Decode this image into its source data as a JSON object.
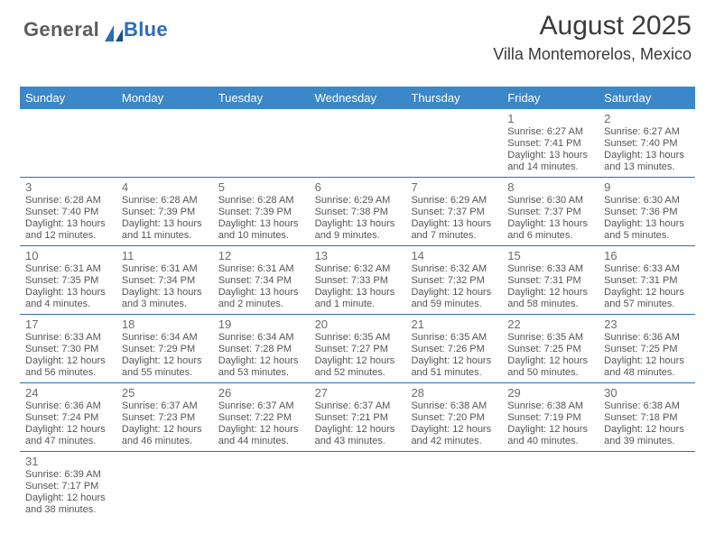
{
  "brand": {
    "general": "General",
    "blue": "Blue"
  },
  "title": {
    "month": "August 2025",
    "location": "Villa Montemorelos, Mexico"
  },
  "colors": {
    "header_bg": "#3b87c8",
    "header_fg": "#ffffff",
    "divider": "#2f6db3",
    "text": "#555555",
    "day_num": "#6b6b6b"
  },
  "daynames": [
    "Sunday",
    "Monday",
    "Tuesday",
    "Wednesday",
    "Thursday",
    "Friday",
    "Saturday"
  ],
  "days": {
    "1": {
      "sunrise": "6:27 AM",
      "sunset": "7:41 PM",
      "daylight": "13 hours and 14 minutes."
    },
    "2": {
      "sunrise": "6:27 AM",
      "sunset": "7:40 PM",
      "daylight": "13 hours and 13 minutes."
    },
    "3": {
      "sunrise": "6:28 AM",
      "sunset": "7:40 PM",
      "daylight": "13 hours and 12 minutes."
    },
    "4": {
      "sunrise": "6:28 AM",
      "sunset": "7:39 PM",
      "daylight": "13 hours and 11 minutes."
    },
    "5": {
      "sunrise": "6:28 AM",
      "sunset": "7:39 PM",
      "daylight": "13 hours and 10 minutes."
    },
    "6": {
      "sunrise": "6:29 AM",
      "sunset": "7:38 PM",
      "daylight": "13 hours and 9 minutes."
    },
    "7": {
      "sunrise": "6:29 AM",
      "sunset": "7:37 PM",
      "daylight": "13 hours and 7 minutes."
    },
    "8": {
      "sunrise": "6:30 AM",
      "sunset": "7:37 PM",
      "daylight": "13 hours and 6 minutes."
    },
    "9": {
      "sunrise": "6:30 AM",
      "sunset": "7:36 PM",
      "daylight": "13 hours and 5 minutes."
    },
    "10": {
      "sunrise": "6:31 AM",
      "sunset": "7:35 PM",
      "daylight": "13 hours and 4 minutes."
    },
    "11": {
      "sunrise": "6:31 AM",
      "sunset": "7:34 PM",
      "daylight": "13 hours and 3 minutes."
    },
    "12": {
      "sunrise": "6:31 AM",
      "sunset": "7:34 PM",
      "daylight": "13 hours and 2 minutes."
    },
    "13": {
      "sunrise": "6:32 AM",
      "sunset": "7:33 PM",
      "daylight": "13 hours and 1 minute."
    },
    "14": {
      "sunrise": "6:32 AM",
      "sunset": "7:32 PM",
      "daylight": "12 hours and 59 minutes."
    },
    "15": {
      "sunrise": "6:33 AM",
      "sunset": "7:31 PM",
      "daylight": "12 hours and 58 minutes."
    },
    "16": {
      "sunrise": "6:33 AM",
      "sunset": "7:31 PM",
      "daylight": "12 hours and 57 minutes."
    },
    "17": {
      "sunrise": "6:33 AM",
      "sunset": "7:30 PM",
      "daylight": "12 hours and 56 minutes."
    },
    "18": {
      "sunrise": "6:34 AM",
      "sunset": "7:29 PM",
      "daylight": "12 hours and 55 minutes."
    },
    "19": {
      "sunrise": "6:34 AM",
      "sunset": "7:28 PM",
      "daylight": "12 hours and 53 minutes."
    },
    "20": {
      "sunrise": "6:35 AM",
      "sunset": "7:27 PM",
      "daylight": "12 hours and 52 minutes."
    },
    "21": {
      "sunrise": "6:35 AM",
      "sunset": "7:26 PM",
      "daylight": "12 hours and 51 minutes."
    },
    "22": {
      "sunrise": "6:35 AM",
      "sunset": "7:25 PM",
      "daylight": "12 hours and 50 minutes."
    },
    "23": {
      "sunrise": "6:36 AM",
      "sunset": "7:25 PM",
      "daylight": "12 hours and 48 minutes."
    },
    "24": {
      "sunrise": "6:36 AM",
      "sunset": "7:24 PM",
      "daylight": "12 hours and 47 minutes."
    },
    "25": {
      "sunrise": "6:37 AM",
      "sunset": "7:23 PM",
      "daylight": "12 hours and 46 minutes."
    },
    "26": {
      "sunrise": "6:37 AM",
      "sunset": "7:22 PM",
      "daylight": "12 hours and 44 minutes."
    },
    "27": {
      "sunrise": "6:37 AM",
      "sunset": "7:21 PM",
      "daylight": "12 hours and 43 minutes."
    },
    "28": {
      "sunrise": "6:38 AM",
      "sunset": "7:20 PM",
      "daylight": "12 hours and 42 minutes."
    },
    "29": {
      "sunrise": "6:38 AM",
      "sunset": "7:19 PM",
      "daylight": "12 hours and 40 minutes."
    },
    "30": {
      "sunrise": "6:38 AM",
      "sunset": "7:18 PM",
      "daylight": "12 hours and 39 minutes."
    },
    "31": {
      "sunrise": "6:39 AM",
      "sunset": "7:17 PM",
      "daylight": "12 hours and 38 minutes."
    }
  },
  "grid": [
    [
      null,
      null,
      null,
      null,
      null,
      "1",
      "2"
    ],
    [
      "3",
      "4",
      "5",
      "6",
      "7",
      "8",
      "9"
    ],
    [
      "10",
      "11",
      "12",
      "13",
      "14",
      "15",
      "16"
    ],
    [
      "17",
      "18",
      "19",
      "20",
      "21",
      "22",
      "23"
    ],
    [
      "24",
      "25",
      "26",
      "27",
      "28",
      "29",
      "30"
    ],
    [
      "31",
      null,
      null,
      null,
      null,
      null,
      null
    ]
  ],
  "labels": {
    "sunrise": "Sunrise: ",
    "sunset": "Sunset: ",
    "daylight": "Daylight: "
  }
}
